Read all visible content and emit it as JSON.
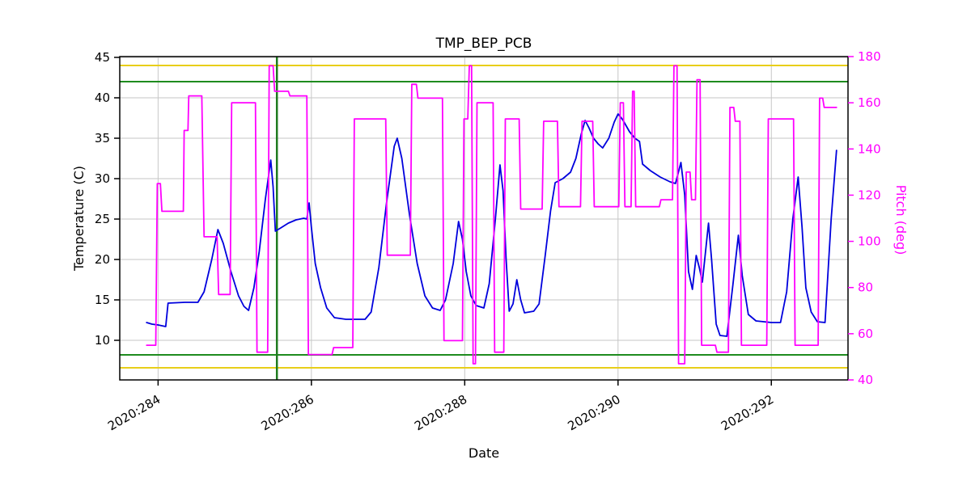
{
  "chart_data": {
    "type": "line",
    "title": "TMP_BEP_PCB",
    "xlabel": "Date",
    "ylabel_left": "Temperature (C)",
    "ylabel_right": "Pitch (deg)",
    "grid": true,
    "xlim": [
      283.5,
      293.0
    ],
    "ylim_left": [
      5.1,
      45.1
    ],
    "ylim_right": [
      40,
      180
    ],
    "xticks": [
      284,
      286,
      288,
      290,
      292
    ],
    "xtick_labels": [
      "2020:284",
      "2020:286",
      "2020:288",
      "2020:290",
      "2020:292"
    ],
    "yticks_left": [
      10,
      15,
      20,
      25,
      30,
      35,
      40,
      45
    ],
    "yticks_right": [
      40,
      60,
      80,
      100,
      120,
      140,
      160,
      180
    ],
    "colors": {
      "temperature": "#0000dd",
      "pitch": "#ff00ff",
      "yellow_limit": "#e8ce19",
      "green_limit": "#1e8b1e",
      "frame": "#000000",
      "grid": "#c6c6c6"
    },
    "limit_lines": [
      {
        "name": "yellow-upper-limit-line",
        "y": 44.0,
        "color": "#e8ce19"
      },
      {
        "name": "green-upper-limit-line",
        "y": 42.0,
        "color": "#1e8b1e"
      },
      {
        "name": "green-lower-limit-line",
        "y": 8.2,
        "color": "#1e8b1e"
      },
      {
        "name": "yellow-lower-limit-line",
        "y": 6.6,
        "color": "#e8ce19"
      }
    ],
    "event_lines": [
      {
        "name": "green-event-vline",
        "x": 285.55,
        "color": "#1e7b1e"
      }
    ],
    "series": [
      {
        "name": "temperature",
        "axis": "left",
        "color": "#0000dd",
        "points": [
          [
            283.85,
            12.2
          ],
          [
            283.92,
            12.0
          ],
          [
            284.0,
            11.9
          ],
          [
            284.05,
            11.8
          ],
          [
            284.1,
            11.7
          ],
          [
            284.13,
            14.6
          ],
          [
            284.35,
            14.7
          ],
          [
            284.52,
            14.7
          ],
          [
            284.6,
            16.0
          ],
          [
            284.7,
            20.0
          ],
          [
            284.78,
            23.7
          ],
          [
            284.85,
            22.0
          ],
          [
            284.95,
            18.5
          ],
          [
            285.05,
            15.5
          ],
          [
            285.12,
            14.2
          ],
          [
            285.18,
            13.7
          ],
          [
            285.25,
            16.5
          ],
          [
            285.32,
            21.0
          ],
          [
            285.4,
            27.5
          ],
          [
            285.47,
            32.3
          ],
          [
            285.5,
            29.0
          ],
          [
            285.53,
            23.5
          ],
          [
            285.6,
            23.9
          ],
          [
            285.7,
            24.5
          ],
          [
            285.8,
            24.9
          ],
          [
            285.9,
            25.1
          ],
          [
            285.94,
            25.0
          ],
          [
            285.97,
            27.0
          ],
          [
            286.0,
            24.0
          ],
          [
            286.05,
            19.5
          ],
          [
            286.12,
            16.5
          ],
          [
            286.2,
            14.0
          ],
          [
            286.3,
            12.8
          ],
          [
            286.45,
            12.6
          ],
          [
            286.7,
            12.6
          ],
          [
            286.78,
            13.5
          ],
          [
            286.88,
            19.0
          ],
          [
            286.98,
            27.0
          ],
          [
            287.08,
            34.0
          ],
          [
            287.12,
            35.0
          ],
          [
            287.18,
            32.5
          ],
          [
            287.28,
            25.5
          ],
          [
            287.38,
            19.5
          ],
          [
            287.48,
            15.5
          ],
          [
            287.58,
            14.0
          ],
          [
            287.68,
            13.7
          ],
          [
            287.75,
            15.0
          ],
          [
            287.85,
            19.5
          ],
          [
            287.92,
            24.7
          ],
          [
            287.97,
            22.5
          ],
          [
            288.02,
            18.5
          ],
          [
            288.08,
            15.5
          ],
          [
            288.15,
            14.3
          ],
          [
            288.25,
            14.0
          ],
          [
            288.32,
            17.0
          ],
          [
            288.4,
            25.0
          ],
          [
            288.46,
            31.7
          ],
          [
            288.5,
            28.5
          ],
          [
            288.54,
            20.0
          ],
          [
            288.58,
            13.6
          ],
          [
            288.63,
            14.5
          ],
          [
            288.68,
            17.5
          ],
          [
            288.73,
            15.0
          ],
          [
            288.78,
            13.4
          ],
          [
            288.9,
            13.6
          ],
          [
            288.97,
            14.5
          ],
          [
            289.05,
            20.5
          ],
          [
            289.12,
            26.0
          ],
          [
            289.18,
            29.5
          ],
          [
            289.28,
            30.0
          ],
          [
            289.38,
            30.8
          ],
          [
            289.45,
            32.5
          ],
          [
            289.52,
            35.5
          ],
          [
            289.57,
            37.2
          ],
          [
            289.62,
            36.3
          ],
          [
            289.68,
            35.0
          ],
          [
            289.74,
            34.3
          ],
          [
            289.8,
            33.8
          ],
          [
            289.88,
            35.0
          ],
          [
            289.95,
            37.0
          ],
          [
            290.0,
            38.0
          ],
          [
            290.06,
            37.3
          ],
          [
            290.15,
            35.8
          ],
          [
            290.22,
            35.0
          ],
          [
            290.28,
            34.6
          ],
          [
            290.32,
            31.8
          ],
          [
            290.42,
            31.0
          ],
          [
            290.55,
            30.2
          ],
          [
            290.68,
            29.6
          ],
          [
            290.75,
            29.4
          ],
          [
            290.82,
            32.0
          ],
          [
            290.87,
            28.0
          ],
          [
            290.92,
            18.5
          ],
          [
            290.97,
            16.3
          ],
          [
            291.02,
            20.5
          ],
          [
            291.06,
            19.0
          ],
          [
            291.1,
            17.2
          ],
          [
            291.18,
            24.5
          ],
          [
            291.22,
            20.0
          ],
          [
            291.28,
            12.0
          ],
          [
            291.33,
            10.6
          ],
          [
            291.42,
            10.5
          ],
          [
            291.5,
            17.0
          ],
          [
            291.57,
            23.0
          ],
          [
            291.62,
            18.0
          ],
          [
            291.7,
            13.2
          ],
          [
            291.8,
            12.4
          ],
          [
            292.0,
            12.2
          ],
          [
            292.12,
            12.2
          ],
          [
            292.2,
            16.0
          ],
          [
            292.28,
            25.0
          ],
          [
            292.35,
            30.2
          ],
          [
            292.4,
            24.0
          ],
          [
            292.45,
            16.5
          ],
          [
            292.52,
            13.5
          ],
          [
            292.6,
            12.3
          ],
          [
            292.7,
            12.2
          ],
          [
            292.78,
            25.0
          ],
          [
            292.85,
            33.5
          ]
        ]
      },
      {
        "name": "pitch",
        "axis": "right",
        "color": "#ff00ff",
        "points": [
          [
            283.85,
            55
          ],
          [
            283.97,
            55
          ],
          [
            283.99,
            125
          ],
          [
            284.03,
            125
          ],
          [
            284.05,
            113
          ],
          [
            284.33,
            113
          ],
          [
            284.34,
            148
          ],
          [
            284.39,
            148
          ],
          [
            284.4,
            163
          ],
          [
            284.57,
            163
          ],
          [
            284.6,
            102
          ],
          [
            284.77,
            102
          ],
          [
            284.79,
            77
          ],
          [
            284.94,
            77
          ],
          [
            284.96,
            160
          ],
          [
            285.27,
            160
          ],
          [
            285.29,
            52
          ],
          [
            285.43,
            52
          ],
          [
            285.45,
            176
          ],
          [
            285.5,
            176
          ],
          [
            285.52,
            165
          ],
          [
            285.7,
            165
          ],
          [
            285.72,
            163
          ],
          [
            285.94,
            163
          ],
          [
            285.96,
            51
          ],
          [
            286.27,
            51
          ],
          [
            286.29,
            54
          ],
          [
            286.54,
            54
          ],
          [
            286.56,
            153
          ],
          [
            286.97,
            153
          ],
          [
            286.99,
            94
          ],
          [
            287.29,
            94
          ],
          [
            287.31,
            168
          ],
          [
            287.37,
            168
          ],
          [
            287.39,
            162
          ],
          [
            287.71,
            162
          ],
          [
            287.73,
            57
          ],
          [
            287.97,
            57
          ],
          [
            287.99,
            153
          ],
          [
            288.04,
            153
          ],
          [
            288.06,
            176
          ],
          [
            288.09,
            176
          ],
          [
            288.11,
            47
          ],
          [
            288.14,
            47
          ],
          [
            288.16,
            160
          ],
          [
            288.37,
            160
          ],
          [
            288.39,
            52
          ],
          [
            288.51,
            52
          ],
          [
            288.53,
            153
          ],
          [
            288.71,
            153
          ],
          [
            288.73,
            114
          ],
          [
            289.01,
            114
          ],
          [
            289.03,
            152
          ],
          [
            289.21,
            152
          ],
          [
            289.23,
            115
          ],
          [
            289.51,
            115
          ],
          [
            289.53,
            152
          ],
          [
            289.67,
            152
          ],
          [
            289.69,
            115
          ],
          [
            290.01,
            115
          ],
          [
            290.03,
            160
          ],
          [
            290.07,
            160
          ],
          [
            290.09,
            115
          ],
          [
            290.17,
            115
          ],
          [
            290.19,
            165
          ],
          [
            290.21,
            165
          ],
          [
            290.23,
            115
          ],
          [
            290.54,
            115
          ],
          [
            290.56,
            118
          ],
          [
            290.71,
            118
          ],
          [
            290.73,
            176
          ],
          [
            290.77,
            176
          ],
          [
            290.79,
            47
          ],
          [
            290.87,
            47
          ],
          [
            290.89,
            130
          ],
          [
            290.94,
            130
          ],
          [
            290.96,
            118
          ],
          [
            291.01,
            118
          ],
          [
            291.03,
            170
          ],
          [
            291.07,
            170
          ],
          [
            291.09,
            55
          ],
          [
            291.27,
            55
          ],
          [
            291.29,
            52
          ],
          [
            291.44,
            52
          ],
          [
            291.46,
            158
          ],
          [
            291.51,
            158
          ],
          [
            291.53,
            152
          ],
          [
            291.59,
            152
          ],
          [
            291.61,
            55
          ],
          [
            291.94,
            55
          ],
          [
            291.96,
            153
          ],
          [
            292.29,
            153
          ],
          [
            292.31,
            55
          ],
          [
            292.61,
            55
          ],
          [
            292.63,
            162
          ],
          [
            292.67,
            162
          ],
          [
            292.69,
            158
          ],
          [
            292.85,
            158
          ]
        ]
      }
    ]
  }
}
